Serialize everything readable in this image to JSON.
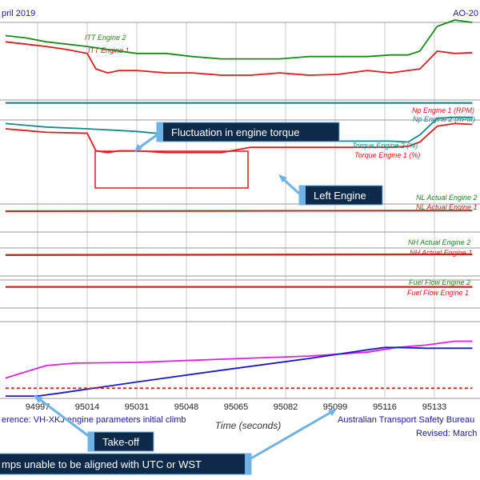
{
  "header": {
    "left": "pril 2019",
    "right": "AO-20"
  },
  "footer": {
    "reference": "erence: VH-XKJ engine parameters initial climb",
    "bureau": "Australian Transport Safety Bureau",
    "revised": "Revised: March"
  },
  "chart_data": {
    "type": "line",
    "xlabel": "Time (seconds)",
    "x_ticks": [
      {
        "value": 94997,
        "label": "94997"
      },
      {
        "value": 95014,
        "label": "95014"
      },
      {
        "value": 95031,
        "label": "95031"
      },
      {
        "value": 95048,
        "label": "95048"
      },
      {
        "value": 95065,
        "label": "95065"
      },
      {
        "value": 95082,
        "label": "95082"
      },
      {
        "value": 95099,
        "label": "95099"
      },
      {
        "value": 95116,
        "label": "95116"
      },
      {
        "value": 95133,
        "label": "95133"
      }
    ],
    "grid": true,
    "series": [
      {
        "name": "ITT Engine 2",
        "color": "#1a8a1a",
        "x": [
          94986,
          94993,
          95000,
          95007,
          95014,
          95021,
          95031,
          95041,
          95050,
          95060,
          95070,
          95080,
          95090,
          95100,
          95110,
          95118,
          95124,
          95128,
          95134,
          95140,
          95146
        ],
        "y": [
          8.3,
          8.0,
          7.5,
          7.2,
          6.9,
          6.5,
          6.0,
          6.0,
          5.6,
          5.3,
          5.3,
          5.3,
          5.6,
          5.6,
          5.6,
          5.8,
          5.8,
          6.3,
          9.5,
          10.3,
          10.0
        ]
      },
      {
        "name": "ITT Engine 1",
        "color": "#e01c1c",
        "x": [
          94986,
          94993,
          95000,
          95007,
          95014,
          95017,
          95021,
          95025,
          95031,
          95041,
          95050,
          95060,
          95070,
          95080,
          95090,
          95100,
          95110,
          95118,
          95124,
          95128,
          95134,
          95140,
          95146
        ],
        "y": [
          7.5,
          7.2,
          6.9,
          6.5,
          6.0,
          4.0,
          3.5,
          3.8,
          3.8,
          3.5,
          3.5,
          3.2,
          3.2,
          3.5,
          3.2,
          3.3,
          3.8,
          3.5,
          3.8,
          4.0,
          6.3,
          6.0,
          6.1
        ]
      },
      {
        "name": "Np Engine 1 (RPM)",
        "color": "#e01c1c",
        "x": [
          94986,
          95146
        ],
        "y": [
          8.6,
          8.6
        ]
      },
      {
        "name": "Np Engine 2 (RPM)",
        "color": "#178a8a",
        "x": [
          94986,
          95146
        ],
        "y": [
          8.5,
          8.5
        ]
      },
      {
        "name": "Torque Engine 2 (%)",
        "color": "#178a8a",
        "x": [
          94986,
          94993,
          95000,
          95014,
          95031,
          95050,
          95065,
          95080,
          95100,
          95118,
          95124,
          95128,
          95134,
          95140,
          95146
        ],
        "y": [
          9.6,
          9.4,
          9.2,
          9.0,
          8.7,
          8.1,
          7.8,
          7.7,
          7.6,
          7.6,
          7.5,
          8.3,
          10.2,
          10.3,
          10.3
        ]
      },
      {
        "name": "Torque Engine 1 (%)",
        "color": "#e01c1c",
        "x": [
          94986,
          94993,
          95000,
          95014,
          95017,
          95021,
          95025,
          95031,
          95041,
          95050,
          95060,
          95070,
          95080,
          95100,
          95118,
          95124,
          95128,
          95134,
          95140,
          95146
        ],
        "y": [
          9.0,
          8.8,
          8.6,
          8.5,
          6.5,
          6.3,
          6.5,
          6.5,
          6.3,
          6.3,
          6.3,
          6.9,
          6.9,
          6.9,
          6.9,
          7.0,
          7.5,
          9.3,
          9.6,
          9.5
        ]
      },
      {
        "name": "NL Actual Engine 2",
        "color": "#1a8a1a",
        "x": [
          94986,
          95146
        ],
        "y": [
          7.5,
          7.7
        ]
      },
      {
        "name": "NL Actual Engine 1",
        "color": "#e01c1c",
        "x": [
          94986,
          95146
        ],
        "y": [
          7.4,
          7.6
        ]
      },
      {
        "name": "NH Actual Engine 2",
        "color": "#1a8a1a",
        "x": [
          94986,
          95146
        ],
        "y": [
          7.6,
          7.8
        ]
      },
      {
        "name": "NH Actual Engine 1",
        "color": "#e01c1c",
        "x": [
          94986,
          95146
        ],
        "y": [
          7.4,
          7.7
        ]
      },
      {
        "name": "Fuel Flow Engine 2",
        "color": "#1a8a1a",
        "x": [
          94986,
          95146
        ],
        "y": [
          7.6,
          7.6
        ]
      },
      {
        "name": "Fuel Flow Engine 1",
        "color": "#e01c1c",
        "x": [
          94986,
          95146
        ],
        "y": [
          7.5,
          7.5
        ]
      },
      {
        "color": "#e020e0",
        "x": [
          94986,
          94993,
          95000,
          95010,
          95031,
          95060,
          95090,
          95110,
          95120,
          95130,
          95140,
          95146
        ],
        "y": [
          2.8,
          3.6,
          4.4,
          4.7,
          4.8,
          5.2,
          5.6,
          6.1,
          6.7,
          7.0,
          7.5,
          7.5
        ]
      },
      {
        "color": "#1a1acc",
        "x": [
          94986,
          94997,
          95005,
          95031,
          95060,
          95090,
          95110,
          95116,
          95120,
          95130,
          95146
        ],
        "y": [
          0.5,
          0.5,
          0.9,
          2.3,
          3.8,
          5.3,
          6.4,
          6.7,
          6.7,
          6.6,
          6.6
        ]
      },
      {
        "color": "#e01c1c",
        "dashed": true,
        "x": [
          94986,
          95146
        ],
        "y": [
          1.5,
          1.5
        ]
      }
    ],
    "annotations": [
      {
        "text": "Fluctuation in engine torque"
      },
      {
        "text": "Left Engine"
      },
      {
        "text": "Take-off"
      },
      {
        "text": "mps unable to be aligned with UTC or WST"
      }
    ]
  }
}
